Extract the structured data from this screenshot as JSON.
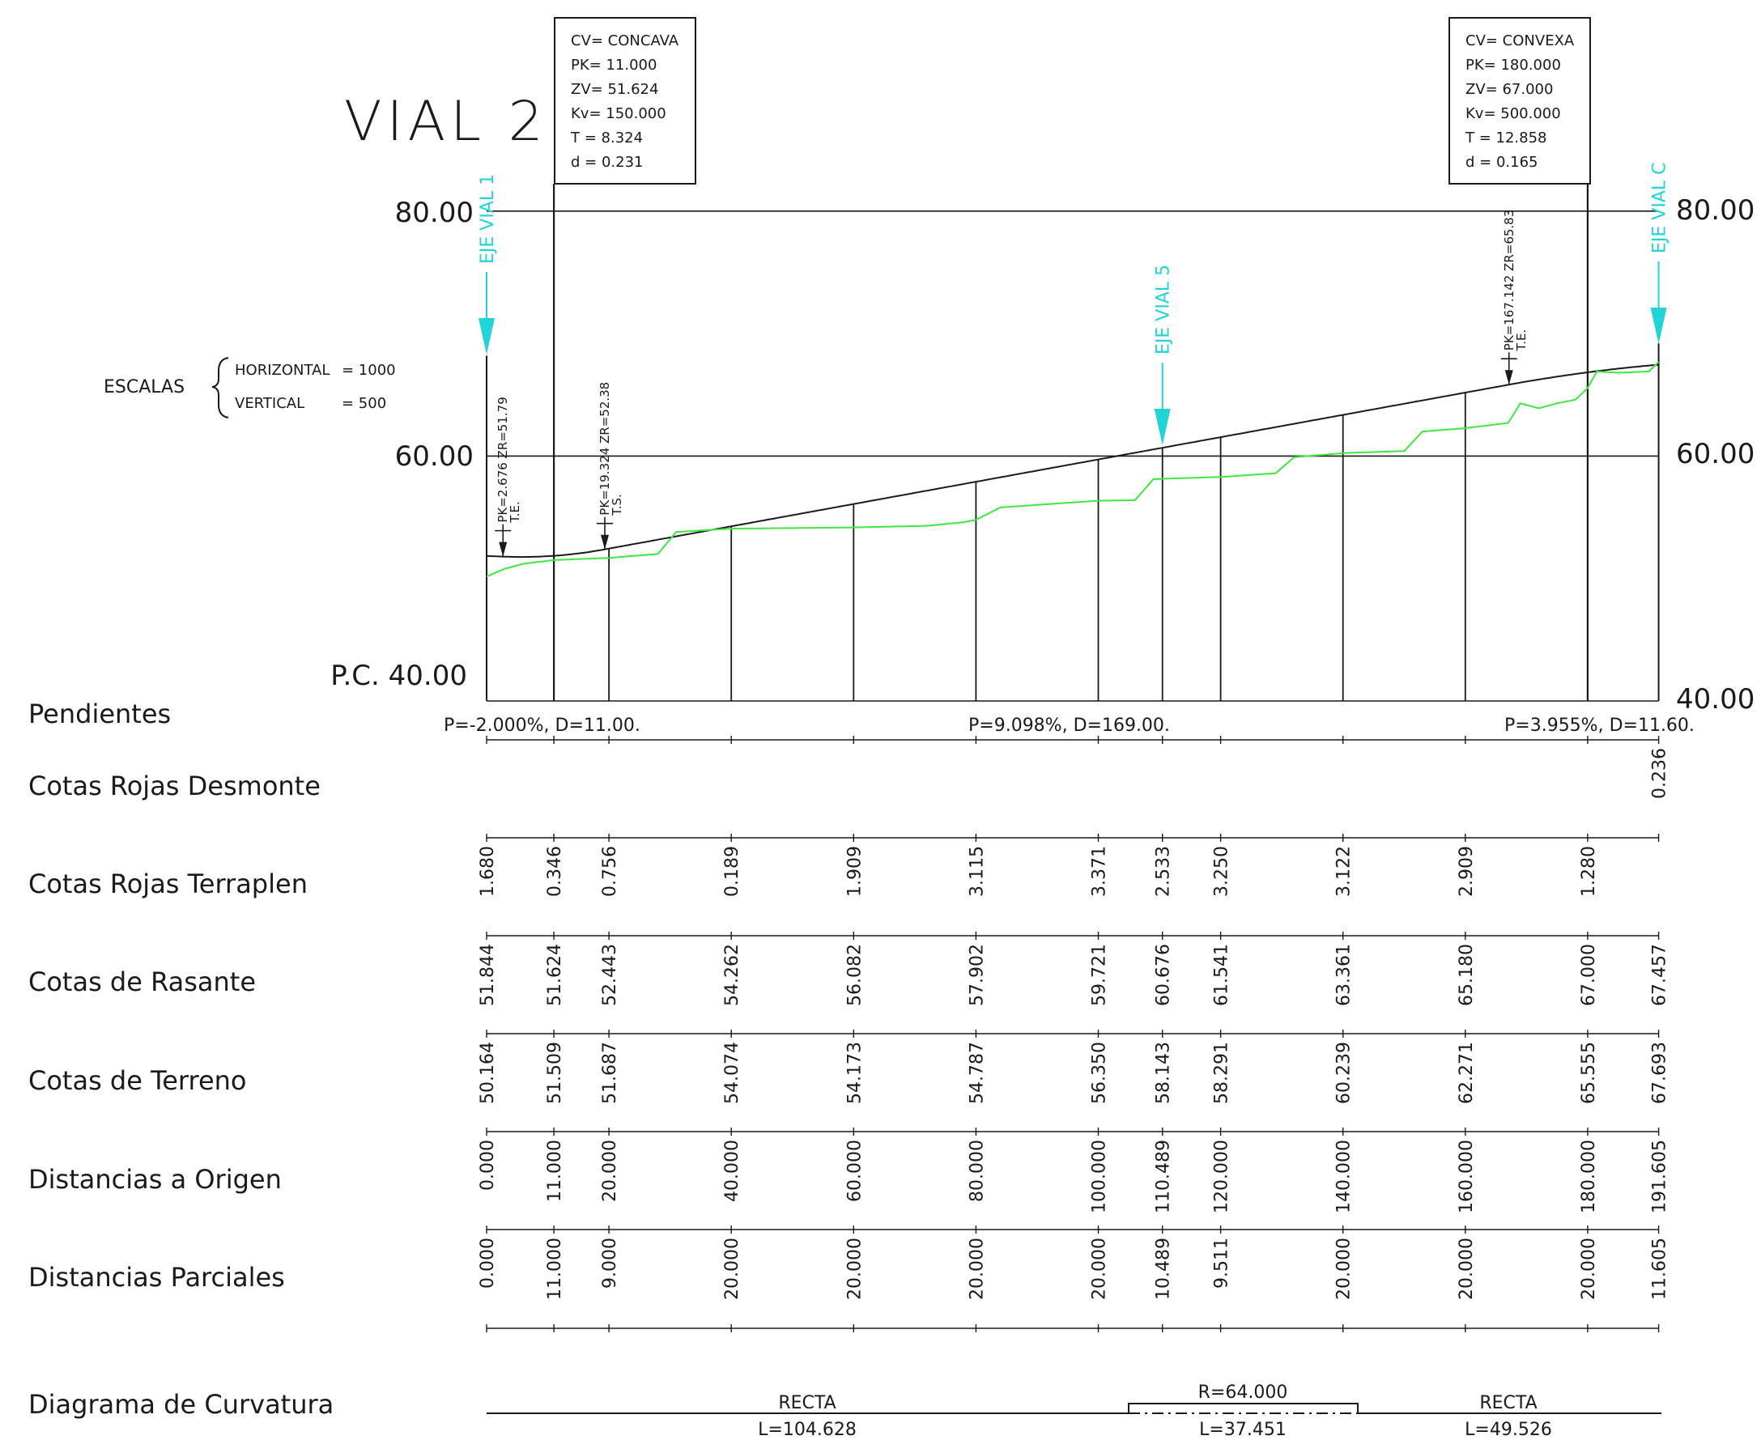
{
  "title": "VIAL 2",
  "chart_data": {
    "type": "line",
    "stations": [
      0.0,
      11.0,
      20.0,
      40.0,
      60.0,
      80.0,
      100.0,
      110.489,
      120.0,
      140.0,
      160.0,
      180.0,
      191.605
    ],
    "rasante": [
      51.844,
      51.624,
      52.443,
      54.262,
      56.082,
      57.902,
      59.721,
      60.676,
      61.541,
      63.361,
      65.18,
      67.0,
      67.457
    ],
    "terrain_profile": [
      [
        0,
        50.164
      ],
      [
        3,
        50.8
      ],
      [
        6,
        51.2
      ],
      [
        11,
        51.509
      ],
      [
        20,
        51.687
      ],
      [
        28,
        52.0
      ],
      [
        31,
        53.8
      ],
      [
        40,
        54.074
      ],
      [
        60,
        54.173
      ],
      [
        72,
        54.3
      ],
      [
        78,
        54.6
      ],
      [
        80,
        54.787
      ],
      [
        84,
        55.8
      ],
      [
        100,
        56.35
      ],
      [
        106,
        56.4
      ],
      [
        109,
        58.1
      ],
      [
        110.489,
        58.143
      ],
      [
        120,
        58.291
      ],
      [
        129,
        58.6
      ],
      [
        132,
        59.9
      ],
      [
        140,
        60.239
      ],
      [
        150,
        60.4
      ],
      [
        153,
        62.0
      ],
      [
        160,
        62.271
      ],
      [
        167,
        62.7
      ],
      [
        169,
        64.3
      ],
      [
        172,
        63.9
      ],
      [
        175,
        64.3
      ],
      [
        178,
        64.6
      ],
      [
        180,
        65.555
      ],
      [
        181.5,
        66.9
      ],
      [
        185,
        66.8
      ],
      [
        190,
        66.9
      ],
      [
        191.605,
        67.693
      ]
    ],
    "y_axis": {
      "min": 40,
      "max": 80,
      "left_labels": [
        "80.00",
        "60.00",
        "P.C. 40.00"
      ],
      "right_labels": [
        "80.00",
        "60.00",
        "40.00"
      ]
    },
    "grid": true
  },
  "vertical_curves": [
    {
      "lines": [
        "CV= CONCAVA",
        "PK= 11.000",
        "ZV= 51.624",
        "Kv= 150.000",
        "T  = 8.324",
        "d  = 0.231"
      ]
    },
    {
      "lines": [
        "CV= CONVEXA",
        "PK= 180.000",
        "ZV= 67.000",
        "Kv= 500.000",
        "T  = 12.858",
        "d  = 0.165"
      ]
    }
  ],
  "axis_markers": [
    {
      "label": "EJE  VIAL  1",
      "pk": 0
    },
    {
      "label": "EJE  VIAL  5",
      "pk": 110.489
    },
    {
      "label": "EJE  VIAL  C",
      "pk": 191.605
    }
  ],
  "points": [
    {
      "label": "PK=2.676  ZR=51.79",
      "sub": "T.E.",
      "pk": 2.676,
      "z": 51.79
    },
    {
      "label": "PK=19.324  ZR=52.38",
      "sub": "T.S.",
      "pk": 19.324,
      "z": 52.38
    },
    {
      "label": "PK=167.142  ZR=65.83",
      "sub": "T.E.",
      "pk": 167.142,
      "z": 65.83
    }
  ],
  "scales": {
    "label": "ESCALAS",
    "horizontal_label": "HORIZONTAL",
    "horizontal_value": "= 1000",
    "vertical_label": "VERTICAL",
    "vertical_value": "= 500"
  },
  "rows": {
    "pendientes": "Pendientes",
    "desmonte": "Cotas  Rojas  Desmonte",
    "terraplen": "Cotas  Rojas  Terraplen",
    "rasante": "Cotas  de  Rasante",
    "terreno": "Cotas  de  Terreno",
    "origen": "Distancias  a  Origen",
    "parciales": "Distancias  Parciales",
    "curvatura": "Diagrama  de  Curvatura"
  },
  "slopes": [
    {
      "text": "P=-2.000%,  D=11.00.",
      "pk": 0
    },
    {
      "text": "P=9.098%,  D=169.00.",
      "pk": 80
    },
    {
      "text": "P=3.955%,  D=11.60.",
      "pk": 180.9
    }
  ],
  "table": {
    "desmonte": [
      "",
      "",
      "",
      "",
      "",
      "",
      "",
      "",
      "",
      "",
      "",
      "",
      "0.236"
    ],
    "terraplen": [
      "1.680",
      "0.346",
      "0.756",
      "0.189",
      "1.909",
      "3.115",
      "3.371",
      "2.533",
      "3.250",
      "3.122",
      "2.909",
      "1.280",
      ""
    ],
    "rasante": [
      "51.844",
      "51.624",
      "52.443",
      "54.262",
      "56.082",
      "57.902",
      "59.721",
      "60.676",
      "61.541",
      "63.361",
      "65.180",
      "67.000",
      "67.457"
    ],
    "terreno": [
      "50.164",
      "51.509",
      "51.687",
      "54.074",
      "54.173",
      "54.787",
      "56.350",
      "58.143",
      "58.291",
      "60.239",
      "62.271",
      "65.555",
      "67.693"
    ],
    "origen": [
      "0.000",
      "11.000",
      "20.000",
      "40.000",
      "60.000",
      "80.000",
      "100.000",
      "110.489",
      "120.000",
      "140.000",
      "160.000",
      "180.000",
      "191.605"
    ],
    "parciales": [
      "0.000",
      "11.000",
      "9.000",
      "20.000",
      "20.000",
      "20.000",
      "20.000",
      "10.489",
      "9.511",
      "20.000",
      "20.000",
      "20.000",
      "11.605"
    ]
  },
  "curvature": [
    {
      "type": "RECTA",
      "length": "L=104.628"
    },
    {
      "type": "R=64.000",
      "length": "L=37.451"
    },
    {
      "type": "RECTA",
      "length": "L=49.526"
    }
  ],
  "colors": {
    "rasante": "#1a1a1a",
    "terrain": "#3ee83e",
    "axis_marker": "#22d3d8",
    "ink": "#1a1a1a"
  }
}
